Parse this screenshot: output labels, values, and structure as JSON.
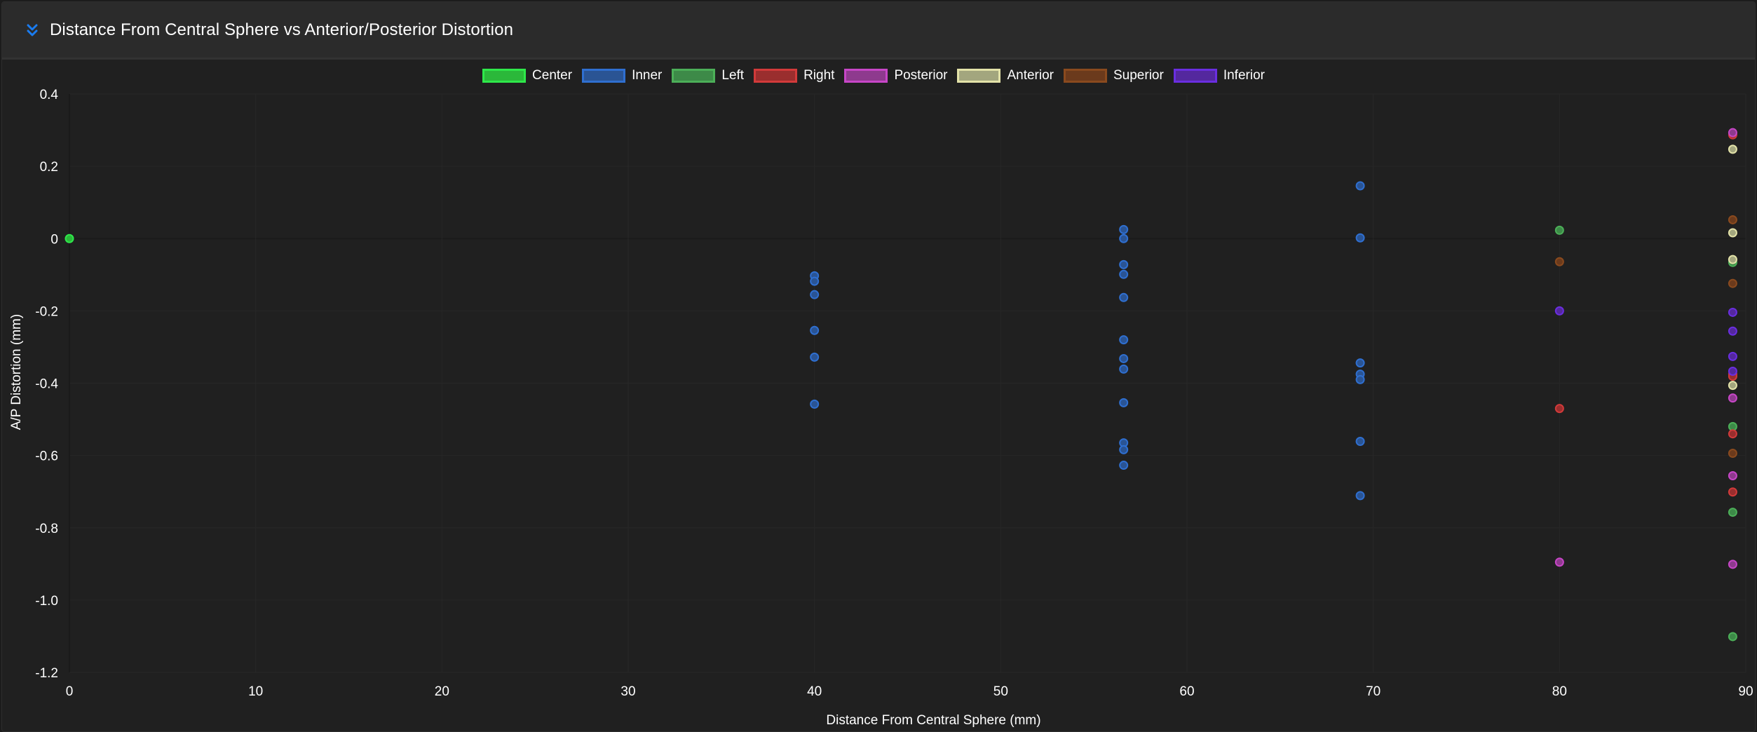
{
  "header": {
    "title": "Distance From Central Sphere vs Anterior/Posterior Distortion",
    "collapse_icon": "double-chevron-down-icon",
    "accent": "#1a7cf0"
  },
  "chart_data": {
    "type": "scatter",
    "title": "Distance From Central Sphere vs Anterior/Posterior Distortion",
    "xlabel": "Distance From Central Sphere (mm)",
    "ylabel": "A/P Distortion (mm)",
    "xlim": [
      0,
      90
    ],
    "ylim": [
      -1.2,
      0.4
    ],
    "xticks": [
      0,
      10,
      20,
      30,
      40,
      50,
      60,
      70,
      80,
      90
    ],
    "yticks": [
      0.4,
      0.2,
      0,
      -0.2,
      -0.4,
      -0.6,
      -0.8,
      -1.0,
      -1.2
    ],
    "ytick_labels": [
      "0.4",
      "0.2",
      "0",
      "-0.2",
      "-0.4",
      "-0.6",
      "-0.8",
      "-1.0",
      "-1.2"
    ],
    "grid": true,
    "legend_position": "top-center",
    "series": [
      {
        "name": "Center",
        "stroke": "#2ee84a",
        "fill": "#2bb83a",
        "points": [
          [
            0,
            0.0
          ]
        ]
      },
      {
        "name": "Inner",
        "stroke": "#2f6fd0",
        "fill": "#2a5494",
        "points": [
          [
            40,
            -0.103
          ],
          [
            40,
            -0.118
          ],
          [
            40,
            -0.155
          ],
          [
            40,
            -0.254
          ],
          [
            40,
            -0.328
          ],
          [
            40,
            -0.458
          ],
          [
            56.6,
            0.025
          ],
          [
            56.6,
            0.0
          ],
          [
            56.6,
            -0.072
          ],
          [
            56.6,
            -0.099
          ],
          [
            56.6,
            -0.163
          ],
          [
            56.6,
            -0.28
          ],
          [
            56.6,
            -0.332
          ],
          [
            56.6,
            -0.361
          ],
          [
            56.6,
            -0.454
          ],
          [
            56.6,
            -0.565
          ],
          [
            56.6,
            -0.584
          ],
          [
            56.6,
            -0.627
          ],
          [
            69.3,
            0.146
          ],
          [
            69.3,
            0.002
          ],
          [
            69.3,
            -0.344
          ],
          [
            69.3,
            -0.375
          ],
          [
            69.3,
            -0.39
          ],
          [
            69.3,
            -0.561
          ],
          [
            69.3,
            -0.711
          ]
        ]
      },
      {
        "name": "Left",
        "stroke": "#4caf58",
        "fill": "#3d8a48",
        "points": [
          [
            80,
            0.023
          ],
          [
            89.3,
            -0.066
          ],
          [
            89.3,
            -0.52
          ],
          [
            89.3,
            -0.757
          ],
          [
            89.3,
            -1.101
          ]
        ]
      },
      {
        "name": "Right",
        "stroke": "#d23a3a",
        "fill": "#9a2e2e",
        "points": [
          [
            80,
            -0.47
          ],
          [
            89.3,
            0.287
          ],
          [
            89.3,
            -0.375
          ],
          [
            89.3,
            -0.381
          ],
          [
            89.3,
            -0.54
          ],
          [
            89.3,
            -0.701
          ]
        ]
      },
      {
        "name": "Posterior",
        "stroke": "#c746c7",
        "fill": "#8e3a8e",
        "points": [
          [
            80,
            -0.895
          ],
          [
            89.3,
            0.293
          ],
          [
            89.3,
            -0.441
          ],
          [
            89.3,
            -0.656
          ],
          [
            89.3,
            -0.901
          ]
        ]
      },
      {
        "name": "Anterior",
        "stroke": "#e3e2a8",
        "fill": "#a3a67e",
        "points": [
          [
            89.3,
            0.247
          ],
          [
            89.3,
            0.016
          ],
          [
            89.3,
            -0.058
          ],
          [
            89.3,
            -0.406
          ]
        ]
      },
      {
        "name": "Superior",
        "stroke": "#8a4a1e",
        "fill": "#6b3a1c",
        "points": [
          [
            80,
            -0.064
          ],
          [
            89.3,
            0.052
          ],
          [
            89.3,
            -0.124
          ],
          [
            89.3,
            -0.594
          ]
        ]
      },
      {
        "name": "Inferior",
        "stroke": "#6a2ee0",
        "fill": "#54289e",
        "points": [
          [
            80,
            -0.2
          ],
          [
            89.3,
            -0.204
          ],
          [
            89.3,
            -0.256
          ],
          [
            89.3,
            -0.326
          ],
          [
            89.3,
            -0.367
          ]
        ]
      }
    ]
  }
}
